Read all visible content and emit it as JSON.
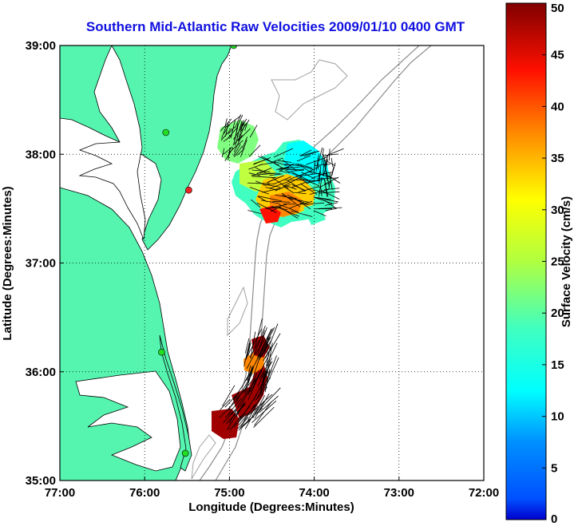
{
  "title": "Southern Mid-Atlantic Raw Velocities 2009/01/10 0400 GMT",
  "map": {
    "x_label": "Longitude (Degrees:Minutes)",
    "y_label": "Latitude (Degrees:Minutes)",
    "lon_range": [
      -77,
      -72
    ],
    "lat_range": [
      35,
      39
    ],
    "x_ticks": [
      {
        "value": -77,
        "label": "77:00"
      },
      {
        "value": -76,
        "label": "76:00"
      },
      {
        "value": -75,
        "label": "75:00"
      },
      {
        "value": -74,
        "label": "74:00"
      },
      {
        "value": -73,
        "label": "73:00"
      },
      {
        "value": -72,
        "label": "72:00"
      }
    ],
    "y_ticks": [
      {
        "value": 35,
        "label": "35:00"
      },
      {
        "value": 36,
        "label": "36:00"
      },
      {
        "value": 37,
        "label": "37:00"
      },
      {
        "value": 38,
        "label": "38:00"
      },
      {
        "value": 39,
        "label": "39:00"
      }
    ],
    "land_color": "#55f5b0",
    "grid": "dotted",
    "stations": [
      {
        "lon": -74.95,
        "lat": 39.0,
        "color": "#22dd22"
      },
      {
        "lon": -75.75,
        "lat": 38.2,
        "color": "#22dd22"
      },
      {
        "lon": -75.48,
        "lat": 37.67,
        "color": "#ee2222"
      },
      {
        "lon": -75.8,
        "lat": 36.18,
        "color": "#22dd22"
      },
      {
        "lon": -75.52,
        "lat": 35.25,
        "color": "#22dd22"
      }
    ]
  },
  "colorbar": {
    "label": "Surface Velocity (cm/s)",
    "min": 0,
    "max": 50,
    "ticks": [
      "0",
      "5",
      "10",
      "15",
      "20",
      "25",
      "30",
      "35",
      "40",
      "45",
      "50"
    ]
  }
}
